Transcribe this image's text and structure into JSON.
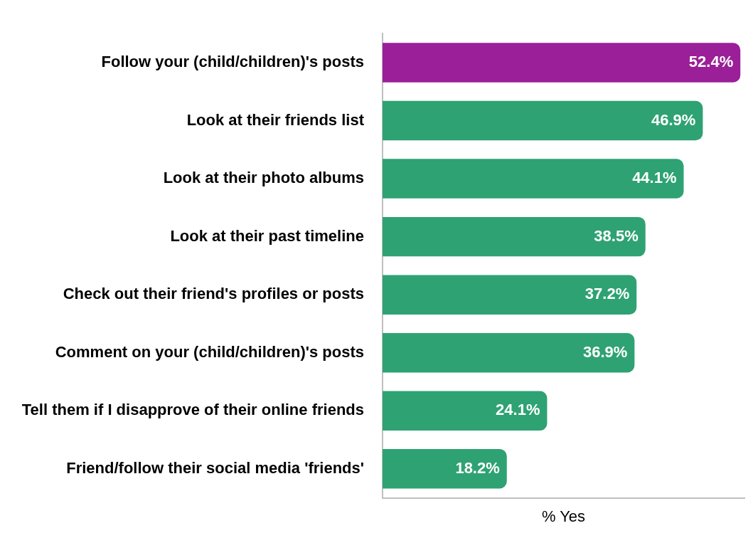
{
  "chart_data": {
    "type": "bar",
    "orientation": "horizontal",
    "xlabel": "% Yes",
    "categories": [
      "Follow your (child/children)'s posts",
      "Look at their friends list",
      "Look at their photo albums",
      "Look at their past timeline",
      "Check out their friend's profiles or posts",
      "Comment on your (child/children)'s posts",
      "Tell them if I disapprove of their online friends",
      "Friend/follow their social media 'friends'"
    ],
    "values": [
      52.4,
      46.9,
      44.1,
      38.5,
      37.2,
      36.9,
      24.1,
      18.2
    ],
    "colors": [
      "#9b1f99",
      "#2ea272",
      "#2ea272",
      "#2ea272",
      "#2ea272",
      "#2ea272",
      "#2ea272",
      "#2ea272"
    ],
    "value_labels": [
      "52.4%",
      "46.9%",
      "44.1%",
      "38.5%",
      "37.2%",
      "36.9%",
      "24.1%",
      "18.2%"
    ],
    "xlim": [
      0,
      53
    ],
    "tick_labels": "y",
    "grid": false,
    "legend": false
  }
}
